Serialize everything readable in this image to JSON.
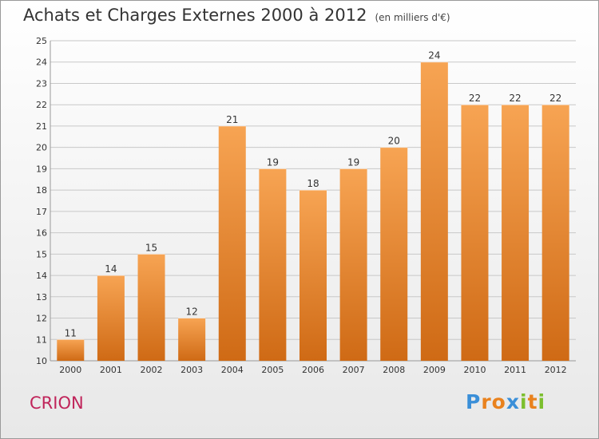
{
  "header": {
    "title": "Achats et Charges Externes 2000 à 2012",
    "unit": "(en milliers d'€)"
  },
  "footer": {
    "place": "CRION",
    "logo_text": "Proxiti",
    "logo_colors": [
      "#3a8fd8",
      "#e9821e",
      "#e9821e",
      "#3a8fd8",
      "#7cbf2e",
      "#e9821e",
      "#7cbf2e"
    ]
  },
  "colors": {
    "bar_top": "#f7a453",
    "bar_bottom": "#cf6a15",
    "grid": "#c8c8c8",
    "axis_text": "#333333",
    "place": "#c0245a"
  },
  "chart_data": {
    "type": "bar",
    "title": "Achats et Charges Externes 2000 à 2012",
    "subtitle": "(en milliers d'€)",
    "categories": [
      "2000",
      "2001",
      "2002",
      "2003",
      "2004",
      "2005",
      "2006",
      "2007",
      "2008",
      "2009",
      "2010",
      "2011",
      "2012"
    ],
    "values": [
      11,
      14,
      15,
      12,
      21,
      19,
      18,
      19,
      20,
      24,
      22,
      22,
      22
    ],
    "ylim": [
      10,
      25
    ],
    "yticks": [
      "10",
      "11",
      "12",
      "13",
      "14",
      "15",
      "16",
      "17",
      "18",
      "19",
      "20",
      "21",
      "22",
      "23",
      "24",
      "25"
    ],
    "grid": true,
    "data_labels": true
  }
}
